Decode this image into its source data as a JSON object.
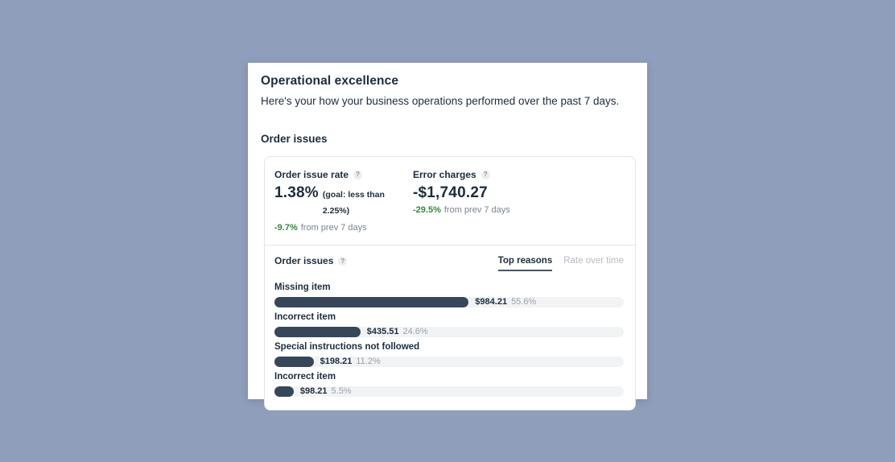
{
  "colors": {
    "page_bg": "#8f9eba",
    "card_bg": "#ffffff",
    "text_dark": "#1c2d3d",
    "text_gray": "#7b848d",
    "text_light_gray": "#b6bcc3",
    "green": "#35893b",
    "bar": "#36475a",
    "track": "#f2f3f5",
    "border": "#e4e5e7",
    "tab_underline": "#46586c"
  },
  "icons": {
    "help_glyph": "?"
  },
  "header": {
    "title": "Operational excellence",
    "subtitle": "Here's your how your business operations performed over the past 7 days."
  },
  "section": {
    "title": "Order issues"
  },
  "stats": [
    {
      "label": "Order issue rate",
      "value": "1.38%",
      "goal_note": "(goal: less than 2.25%)",
      "trend_value": "-9.7%",
      "trend_text": "from prev 7 days"
    },
    {
      "label": "Error charges",
      "value": "-$1,740.27",
      "goal_note": "",
      "trend_value": "-29.5%",
      "trend_text": "from prev 7 days"
    }
  ],
  "chart_header": {
    "title": "Order issues",
    "tabs": [
      {
        "label": "Top reasons"
      },
      {
        "label": "Rate over time"
      }
    ],
    "active_tab": "Top reasons"
  },
  "chart_data": {
    "type": "bar",
    "orientation": "horizontal",
    "title": "Order issues — Top reasons",
    "categories": [
      "Missing item",
      "Incorrect item",
      "Special instructions not followed",
      "Incorrect item"
    ],
    "values_usd": [
      984.21,
      435.51,
      198.21,
      98.21
    ],
    "percent_of_total": [
      55.6,
      24.6,
      11.2,
      5.5
    ],
    "value_labels": [
      "$984.21",
      "$435.51",
      "$198.21",
      "$98.21"
    ],
    "percent_labels": [
      "55.6%",
      "24.6%",
      "11.2%",
      "5.5%"
    ],
    "xlim_percent": [
      0,
      100
    ],
    "grid": false,
    "legend": "none"
  }
}
